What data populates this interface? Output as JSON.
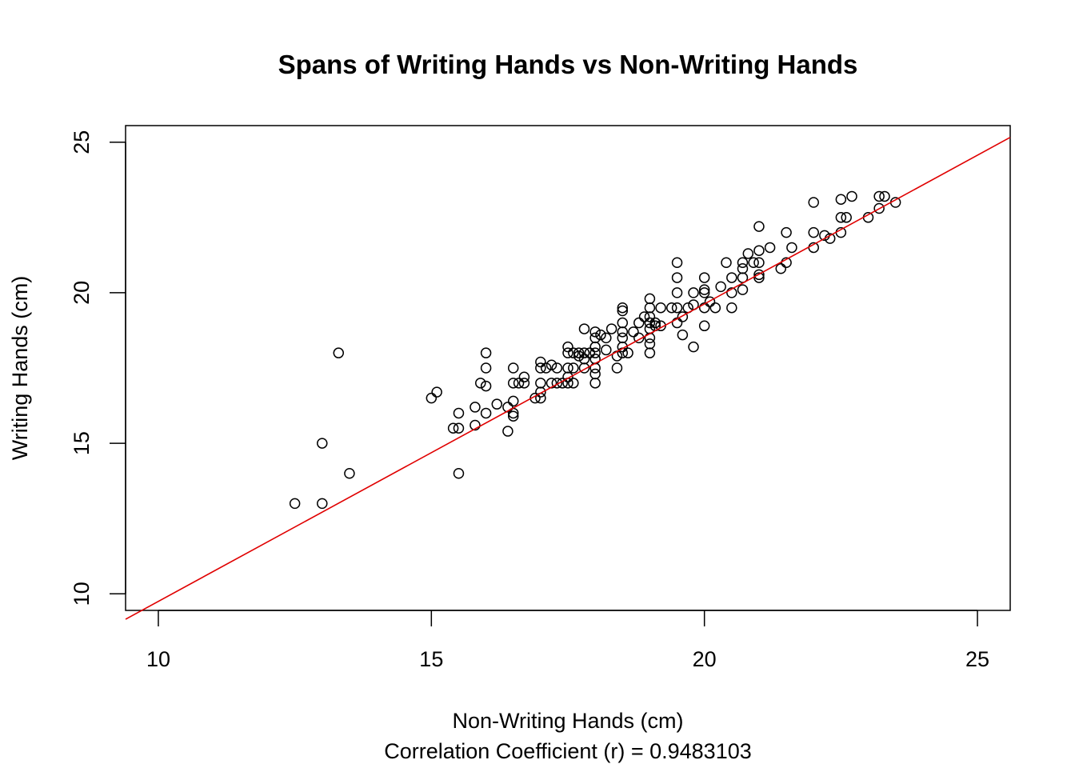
{
  "chart_data": {
    "type": "scatter",
    "title": "Spans of Writing Hands vs Non-Writing Hands",
    "xlabel": "Non-Writing Hands (cm)",
    "ylabel": "Writing Hands (cm)",
    "subtitle": "Correlation Coefficient (r) = 0.9483103",
    "xlim": [
      9.4,
      25.6
    ],
    "ylim": [
      9.45,
      25.55
    ],
    "x_ticks": [
      10,
      15,
      20,
      25
    ],
    "y_ticks": [
      10,
      15,
      20,
      25
    ],
    "x_tick_labels": [
      "10",
      "15",
      "20",
      "25"
    ],
    "y_tick_labels": [
      "10",
      "15",
      "20",
      "25"
    ],
    "grid": false,
    "marker": "open-circle",
    "point_color": "#000000",
    "fit_line": {
      "color": "#e00000",
      "intercept": -0.1286,
      "slope": 0.9878
    },
    "points": [
      [
        12.5,
        13.0
      ],
      [
        13.0,
        13.0
      ],
      [
        13.0,
        15.0
      ],
      [
        13.3,
        18.0
      ],
      [
        13.5,
        14.0
      ],
      [
        15.0,
        16.5
      ],
      [
        15.1,
        16.7
      ],
      [
        15.4,
        15.5
      ],
      [
        15.5,
        15.5
      ],
      [
        15.5,
        16.0
      ],
      [
        15.5,
        14.0
      ],
      [
        15.8,
        16.2
      ],
      [
        15.8,
        15.6
      ],
      [
        15.9,
        17.0
      ],
      [
        16.0,
        16.9
      ],
      [
        16.0,
        17.5
      ],
      [
        16.0,
        18.0
      ],
      [
        16.0,
        16.0
      ],
      [
        16.2,
        16.3
      ],
      [
        16.4,
        16.2
      ],
      [
        16.4,
        15.4
      ],
      [
        16.5,
        16.4
      ],
      [
        16.5,
        16.0
      ],
      [
        16.5,
        15.9
      ],
      [
        16.5,
        17.0
      ],
      [
        16.5,
        17.5
      ],
      [
        16.6,
        17.0
      ],
      [
        16.7,
        17.0
      ],
      [
        16.7,
        17.2
      ],
      [
        16.9,
        16.5
      ],
      [
        17.0,
        16.5
      ],
      [
        17.0,
        16.7
      ],
      [
        17.0,
        17.0
      ],
      [
        17.0,
        17.5
      ],
      [
        17.0,
        17.7
      ],
      [
        17.1,
        17.5
      ],
      [
        17.2,
        17.6
      ],
      [
        17.2,
        17.0
      ],
      [
        17.3,
        17.5
      ],
      [
        17.3,
        17.0
      ],
      [
        17.4,
        17.0
      ],
      [
        17.5,
        17.0
      ],
      [
        17.5,
        17.2
      ],
      [
        17.5,
        17.5
      ],
      [
        17.5,
        18.0
      ],
      [
        17.5,
        18.2
      ],
      [
        17.6,
        17.5
      ],
      [
        17.6,
        17.0
      ],
      [
        17.6,
        18.0
      ],
      [
        17.7,
        17.9
      ],
      [
        17.7,
        18.0
      ],
      [
        17.8,
        17.8
      ],
      [
        17.8,
        17.5
      ],
      [
        17.8,
        18.0
      ],
      [
        17.8,
        18.8
      ],
      [
        17.9,
        18.0
      ],
      [
        18.0,
        17.0
      ],
      [
        18.0,
        17.3
      ],
      [
        18.0,
        17.5
      ],
      [
        18.0,
        17.8
      ],
      [
        18.0,
        18.0
      ],
      [
        18.0,
        18.2
      ],
      [
        18.0,
        18.5
      ],
      [
        18.0,
        18.7
      ],
      [
        18.1,
        18.6
      ],
      [
        18.2,
        18.5
      ],
      [
        18.2,
        18.1
      ],
      [
        18.3,
        18.8
      ],
      [
        18.4,
        17.5
      ],
      [
        18.4,
        17.9
      ],
      [
        18.5,
        18.0
      ],
      [
        18.5,
        18.2
      ],
      [
        18.5,
        18.5
      ],
      [
        18.5,
        18.7
      ],
      [
        18.5,
        19.0
      ],
      [
        18.5,
        19.4
      ],
      [
        18.5,
        19.5
      ],
      [
        18.6,
        18.0
      ],
      [
        18.7,
        18.7
      ],
      [
        18.8,
        18.5
      ],
      [
        18.8,
        19.0
      ],
      [
        18.9,
        19.2
      ],
      [
        19.0,
        18.0
      ],
      [
        19.0,
        18.3
      ],
      [
        19.0,
        18.5
      ],
      [
        19.0,
        18.8
      ],
      [
        19.0,
        19.0
      ],
      [
        19.0,
        19.2
      ],
      [
        19.0,
        19.5
      ],
      [
        19.0,
        19.8
      ],
      [
        19.1,
        18.9
      ],
      [
        19.1,
        19.0
      ],
      [
        19.2,
        19.5
      ],
      [
        19.2,
        18.9
      ],
      [
        19.4,
        19.5
      ],
      [
        19.5,
        19.0
      ],
      [
        19.5,
        19.5
      ],
      [
        19.5,
        20.0
      ],
      [
        19.5,
        20.5
      ],
      [
        19.5,
        21.0
      ],
      [
        19.6,
        18.6
      ],
      [
        19.6,
        19.2
      ],
      [
        19.7,
        19.5
      ],
      [
        19.8,
        19.6
      ],
      [
        19.8,
        18.2
      ],
      [
        19.8,
        20.0
      ],
      [
        20.0,
        19.5
      ],
      [
        20.0,
        20.0
      ],
      [
        20.0,
        20.5
      ],
      [
        20.0,
        18.9
      ],
      [
        20.0,
        20.1
      ],
      [
        20.1,
        19.7
      ],
      [
        20.2,
        19.5
      ],
      [
        20.3,
        20.2
      ],
      [
        20.4,
        21.0
      ],
      [
        20.5,
        20.0
      ],
      [
        20.5,
        19.5
      ],
      [
        20.5,
        20.5
      ],
      [
        20.7,
        20.1
      ],
      [
        20.7,
        20.8
      ],
      [
        20.7,
        21.0
      ],
      [
        20.7,
        20.5
      ],
      [
        20.8,
        21.3
      ],
      [
        20.9,
        21.0
      ],
      [
        21.0,
        20.5
      ],
      [
        21.0,
        20.6
      ],
      [
        21.0,
        21.0
      ],
      [
        21.0,
        21.4
      ],
      [
        21.0,
        22.2
      ],
      [
        21.2,
        21.5
      ],
      [
        21.4,
        20.8
      ],
      [
        21.5,
        21.0
      ],
      [
        21.5,
        22.0
      ],
      [
        21.6,
        21.5
      ],
      [
        22.0,
        21.5
      ],
      [
        22.0,
        22.0
      ],
      [
        22.0,
        23.0
      ],
      [
        22.2,
        21.9
      ],
      [
        22.3,
        21.8
      ],
      [
        22.5,
        22.0
      ],
      [
        22.5,
        22.5
      ],
      [
        22.5,
        23.1
      ],
      [
        22.6,
        22.5
      ],
      [
        22.7,
        23.2
      ],
      [
        23.0,
        22.5
      ],
      [
        23.2,
        22.8
      ],
      [
        23.2,
        23.2
      ],
      [
        23.3,
        23.2
      ],
      [
        23.5,
        23.0
      ]
    ]
  }
}
